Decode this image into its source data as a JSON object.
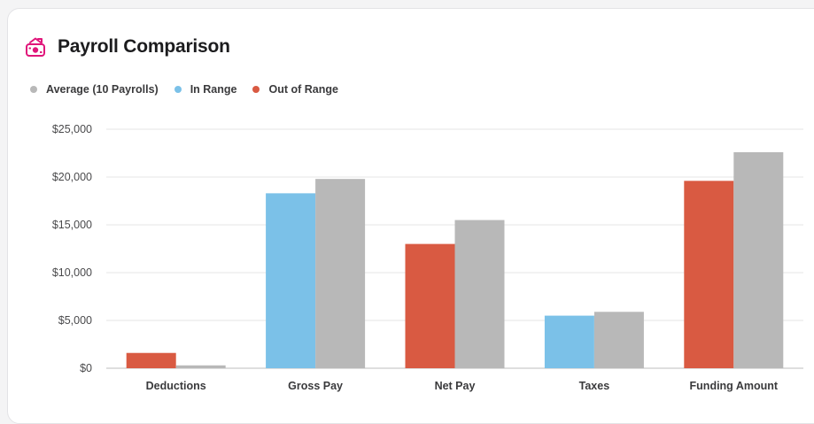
{
  "header": {
    "title": "Payroll Comparison",
    "icon": "payroll-camera-icon"
  },
  "colors": {
    "average": "#b8b8b8",
    "in_range": "#7bc1e8",
    "out_of_range": "#d95a42",
    "accent": "#e0157a"
  },
  "chart_data": {
    "type": "bar",
    "title": "Payroll Comparison",
    "xlabel": "",
    "ylabel": "",
    "categories": [
      "Deductions",
      "Gross Pay",
      "Net Pay",
      "Taxes",
      "Funding Amount"
    ],
    "ylim": [
      0,
      25000
    ],
    "yticks": [
      0,
      5000,
      10000,
      15000,
      20000,
      25000
    ],
    "ytick_labels": [
      "$0",
      "$5,000",
      "$10,000",
      "$15,000",
      "$20,000",
      "$25,000"
    ],
    "grid": true,
    "legend_position": "top-left",
    "legend": [
      {
        "name": "Average (10 Payrolls)",
        "color": "#b8b8b8"
      },
      {
        "name": "In Range",
        "color": "#7bc1e8"
      },
      {
        "name": "Out of Range",
        "color": "#d95a42"
      }
    ],
    "current": {
      "values": [
        1600,
        18300,
        13000,
        5500,
        19600
      ],
      "status": [
        "Out of Range",
        "In Range",
        "Out of Range",
        "In Range",
        "Out of Range"
      ]
    },
    "average": {
      "name": "Average (10 Payrolls)",
      "values": [
        300,
        19800,
        15500,
        5900,
        22600
      ]
    }
  }
}
